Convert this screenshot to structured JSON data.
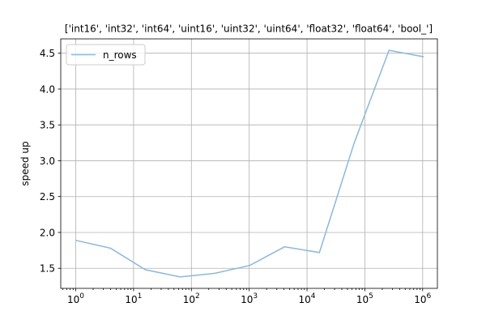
{
  "chart_data": {
    "type": "line",
    "title": "['int16', 'int32', 'int64', 'uint16', 'uint32', 'uint64', 'float32', 'float64', 'bool_']",
    "xlabel": "",
    "ylabel": "speed up",
    "xscale": "log",
    "xlim": [
      0.55,
      1800000
    ],
    "ylim": [
      1.22,
      4.7
    ],
    "grid": true,
    "legend_position": "top-left",
    "x_ticks": [
      {
        "value": 1,
        "base": "10",
        "exp": "0"
      },
      {
        "value": 10,
        "base": "10",
        "exp": "1"
      },
      {
        "value": 100,
        "base": "10",
        "exp": "2"
      },
      {
        "value": 1000,
        "base": "10",
        "exp": "3"
      },
      {
        "value": 10000,
        "base": "10",
        "exp": "4"
      },
      {
        "value": 100000,
        "base": "10",
        "exp": "5"
      },
      {
        "value": 1000000,
        "base": "10",
        "exp": "6"
      }
    ],
    "y_ticks": [
      {
        "value": 1.5,
        "label": "1.5"
      },
      {
        "value": 2.0,
        "label": "2.0"
      },
      {
        "value": 2.5,
        "label": "2.5"
      },
      {
        "value": 3.0,
        "label": "3.0"
      },
      {
        "value": 3.5,
        "label": "3.5"
      },
      {
        "value": 4.0,
        "label": "4.0"
      },
      {
        "value": 4.5,
        "label": "4.5"
      }
    ],
    "series": [
      {
        "name": "n_rows",
        "color": "#8bb8d9",
        "x": [
          1,
          4,
          16,
          64,
          256,
          1024,
          4096,
          16384,
          65536,
          262144,
          1048576
        ],
        "y": [
          1.89,
          1.78,
          1.48,
          1.38,
          1.43,
          1.54,
          1.8,
          1.72,
          3.25,
          4.54,
          4.45
        ]
      }
    ]
  }
}
